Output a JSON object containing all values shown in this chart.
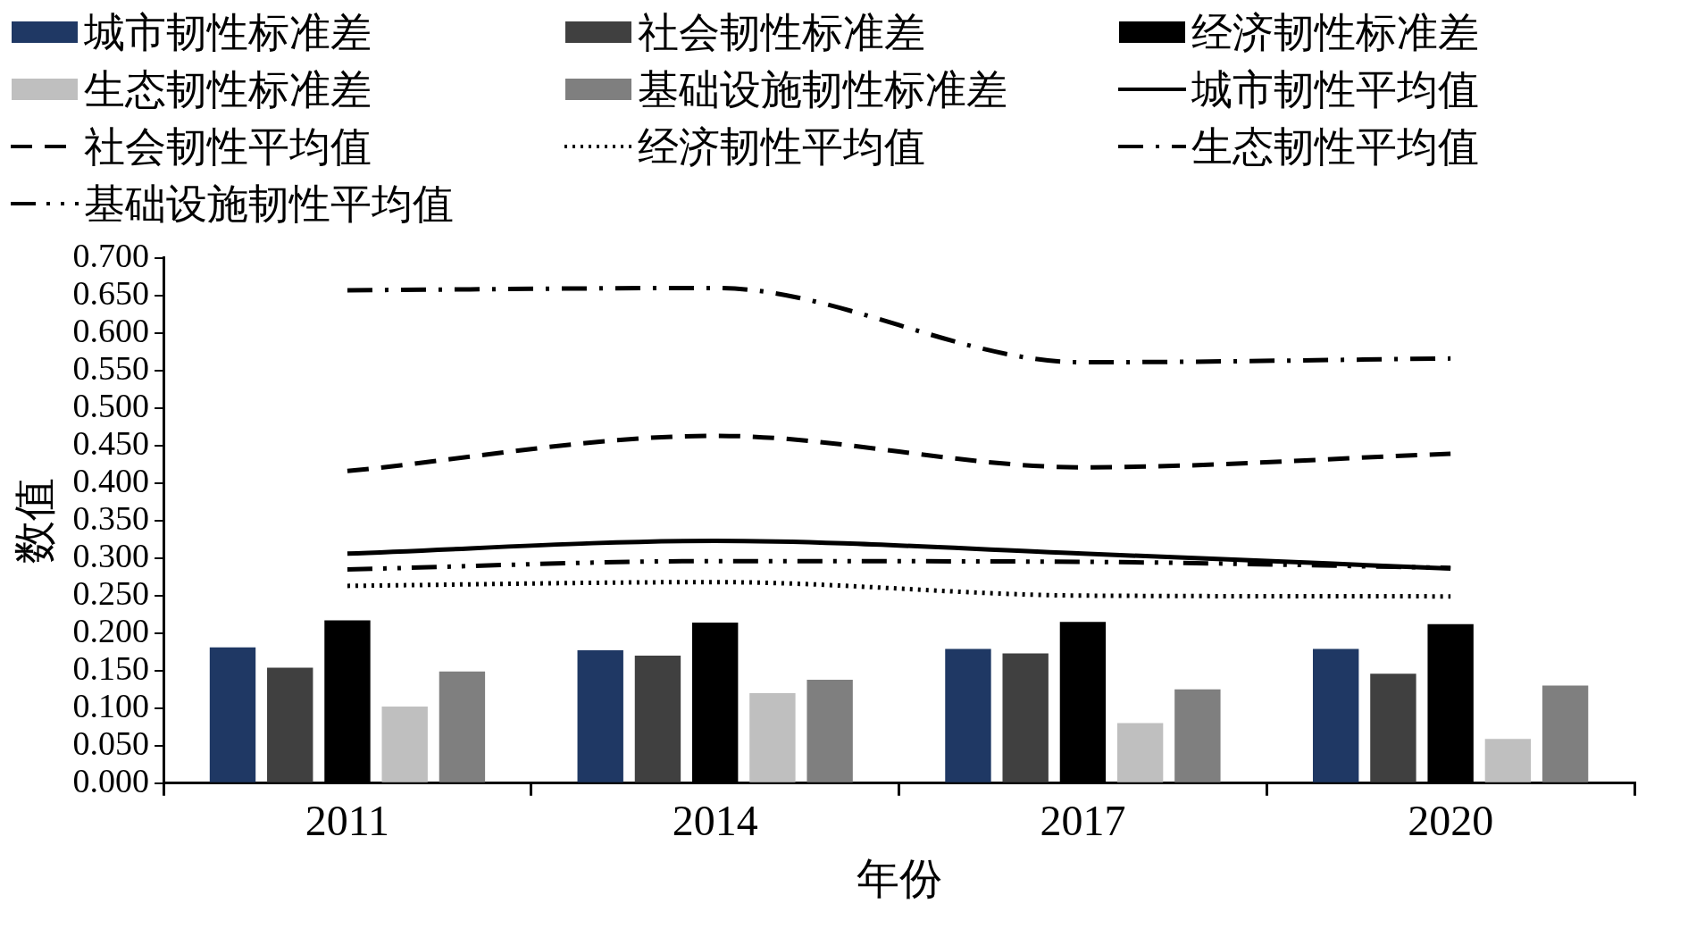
{
  "chart_data": {
    "type": "bar",
    "xlabel": "年份",
    "ylabel": "数值",
    "categories": [
      "2011",
      "2014",
      "2017",
      "2020"
    ],
    "ylim": [
      0,
      0.7
    ],
    "yticks": [
      {
        "value": 0,
        "label": "0.000"
      },
      {
        "value": 0.05,
        "label": "0.050"
      },
      {
        "value": 0.1,
        "label": "0.100"
      },
      {
        "value": 0.15,
        "label": "0.150"
      },
      {
        "value": 0.2,
        "label": "0.200"
      },
      {
        "value": 0.25,
        "label": "0.250"
      },
      {
        "value": 0.3,
        "label": "0.300"
      },
      {
        "value": 0.35,
        "label": "0.350"
      },
      {
        "value": 0.4,
        "label": "0.400"
      },
      {
        "value": 0.45,
        "label": "0.450"
      },
      {
        "value": 0.5,
        "label": "0.500"
      },
      {
        "value": 0.55,
        "label": "0.550"
      },
      {
        "value": 0.6,
        "label": "0.600"
      },
      {
        "value": 0.65,
        "label": "0.650"
      },
      {
        "value": 0.7,
        "label": "0.700"
      }
    ],
    "grid": false,
    "legend": "top",
    "series": [
      {
        "name": "城市韧性标准差",
        "color": "#1f3864",
        "values": [
          0.181,
          0.177,
          0.179,
          0.179
        ]
      },
      {
        "name": "社会韧性标准差",
        "color": "#404040",
        "values": [
          0.154,
          0.17,
          0.173,
          0.146
        ]
      },
      {
        "name": "经济韧性标准差",
        "color": "#000000",
        "values": [
          0.217,
          0.214,
          0.215,
          0.212
        ]
      },
      {
        "name": "生态韧性标准差",
        "color": "#bfbfbf",
        "values": [
          0.102,
          0.12,
          0.08,
          0.059
        ]
      },
      {
        "name": "基础设施韧性标准差",
        "color": "#7f7f7f",
        "values": [
          0.149,
          0.138,
          0.125,
          0.13
        ]
      },
      {
        "name": "城市韧性平均值",
        "type": "line",
        "line_style": "solid",
        "color": "#000000",
        "values": [
          0.306,
          0.323,
          0.306,
          0.286
        ]
      },
      {
        "name": "社会韧性平均值",
        "type": "line",
        "line_style": "dashed",
        "color": "#000000",
        "values": [
          0.416,
          0.463,
          0.421,
          0.439
        ]
      },
      {
        "name": "经济韧性平均值",
        "type": "line",
        "line_style": "dotted",
        "color": "#000000",
        "values": [
          0.263,
          0.268,
          0.25,
          0.249
        ]
      },
      {
        "name": "生态韧性平均值",
        "type": "line",
        "line_style": "dashdot",
        "color": "#000000",
        "values": [
          0.657,
          0.66,
          0.561,
          0.566
        ]
      },
      {
        "name": "基础设施韧性平均值",
        "type": "line",
        "line_style": "dashdotdot",
        "color": "#000000",
        "values": [
          0.285,
          0.296,
          0.295,
          0.287
        ]
      }
    ]
  }
}
